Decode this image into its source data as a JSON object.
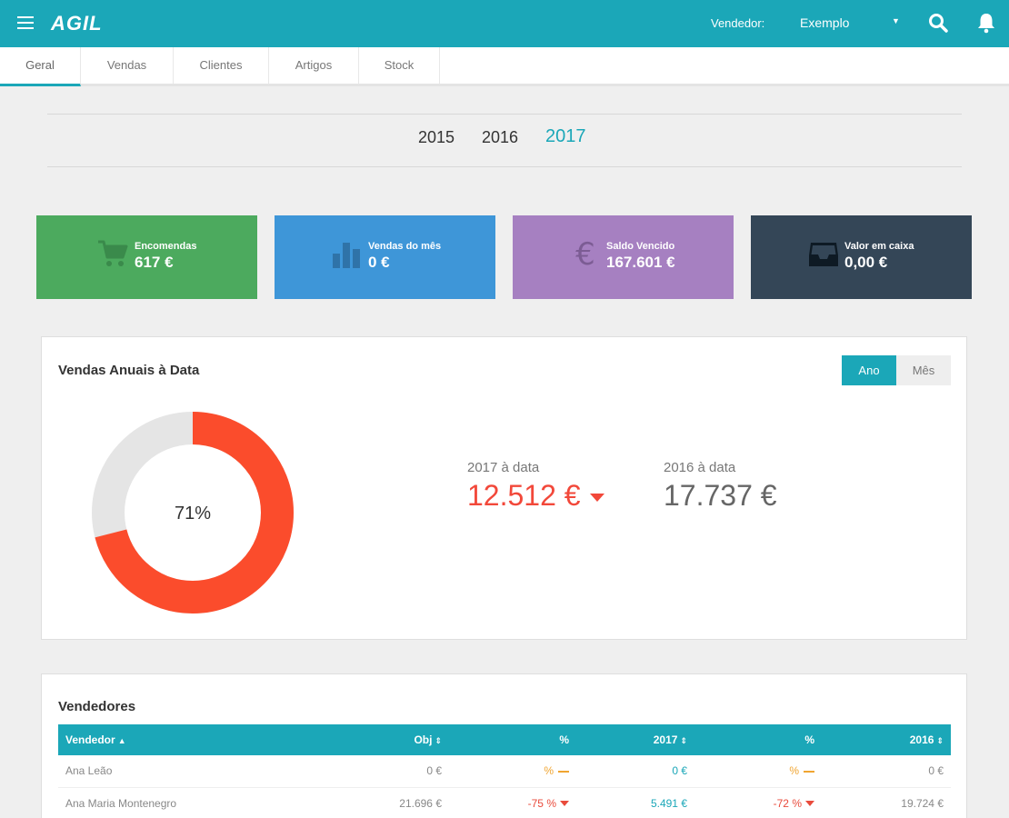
{
  "app": {
    "logo": "AGIL"
  },
  "header": {
    "seller_label": "Vendedor:",
    "seller_value": "Exemplo"
  },
  "tabs": [
    {
      "label": "Geral"
    },
    {
      "label": "Vendas"
    },
    {
      "label": "Clientes"
    },
    {
      "label": "Artigos"
    },
    {
      "label": "Stock"
    }
  ],
  "years": [
    "2015",
    "2016",
    "2017"
  ],
  "kpis": [
    {
      "label": "Encomendas",
      "value": "617 €",
      "icon": "cart-icon",
      "color": "#4caa5e"
    },
    {
      "label": "Vendas do mês",
      "value": "0 €",
      "icon": "bar-chart-icon",
      "color": "#3e96d8"
    },
    {
      "label": "Saldo Vencido",
      "value": "167.601 €",
      "icon": "euro-icon",
      "color": "#a680c1"
    },
    {
      "label": "Valor em caixa",
      "value": "0,00 €",
      "icon": "inbox-icon",
      "color": "#344657"
    }
  ],
  "annual": {
    "title": "Vendas Anuais à Data",
    "toggle": [
      "Ano",
      "Mês"
    ],
    "percent_label": "71%",
    "current_label": "2017 à data",
    "current_value": "12.512 €",
    "previous_label": "2016 à data",
    "previous_value": "17.737 €"
  },
  "chart_data": {
    "type": "pie",
    "categories": [
      "2017 à data",
      ""
    ],
    "values": [
      71,
      29
    ],
    "colors": [
      "#fb4c2c",
      "#e5e5e5"
    ]
  },
  "sellers": {
    "title": "Vendedores",
    "columns": [
      "Vendedor",
      "Obj",
      "%",
      "2017",
      "%",
      "2016"
    ],
    "rows": [
      {
        "name": "Ana Leão",
        "obj": "0 €",
        "pct1": "%",
        "v2017": "0 €",
        "pct2": "%",
        "v2016": "0 €"
      },
      {
        "name": "Ana Maria Montenegro",
        "obj": "21.696 €",
        "pct1": "-75 %",
        "v2017": "5.491 €",
        "pct2": "-72 %",
        "v2016": "19.724 €"
      }
    ]
  },
  "colors": {
    "accent": "#1ba7b8",
    "negative": "#e94b3c",
    "neutral": "#f0a531"
  }
}
